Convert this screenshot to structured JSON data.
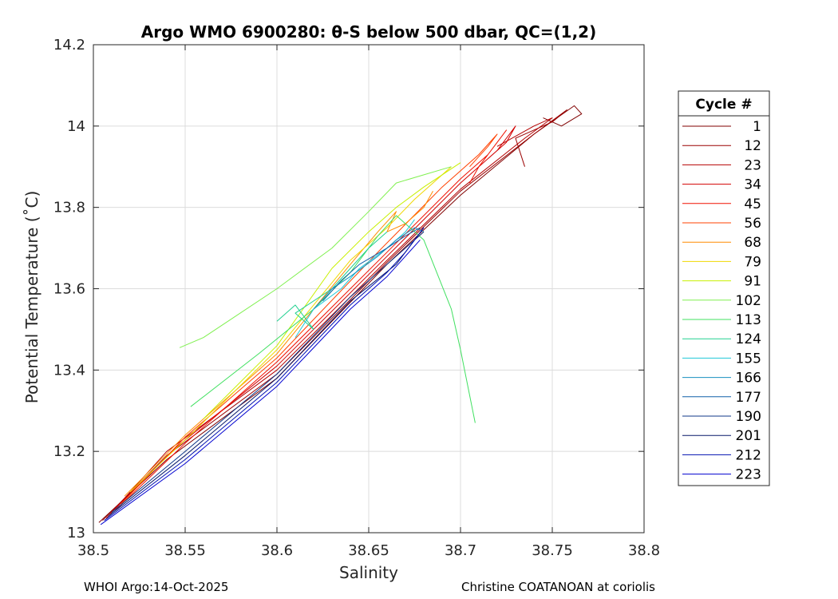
{
  "chart_data": {
    "type": "line",
    "title": "Argo WMO 6900280: θ-S below 500 dbar,  QC=(1,2)",
    "xlabel": "Salinity",
    "ylabel": "Potential Temperature (˚C)",
    "xlim": [
      38.5,
      38.8
    ],
    "ylim": [
      13.0,
      14.2
    ],
    "xticks": [
      "38.5",
      "38.55",
      "38.6",
      "38.65",
      "38.7",
      "38.75",
      "38.8"
    ],
    "yticks": [
      "13",
      "13.2",
      "13.4",
      "13.6",
      "13.8",
      "14",
      "14.2"
    ],
    "grid": true,
    "legend_title": "Cycle #",
    "legend_position": "right",
    "series": [
      {
        "name": "1",
        "color": "#800000",
        "x": [
          38.503,
          38.54,
          38.6,
          38.66,
          38.7,
          38.74,
          38.762,
          38.766,
          38.755,
          38.745
        ],
        "y": [
          13.025,
          13.18,
          13.38,
          13.66,
          13.83,
          13.98,
          14.05,
          14.03,
          14.0,
          14.02
        ]
      },
      {
        "name": "12",
        "color": "#9a0000",
        "x": [
          38.505,
          38.54,
          38.6,
          38.66,
          38.7,
          38.74,
          38.758,
          38.75,
          38.73,
          38.735
        ],
        "y": [
          13.03,
          13.19,
          13.39,
          13.665,
          13.84,
          13.98,
          14.04,
          14.01,
          13.97,
          13.9
        ]
      },
      {
        "name": "23",
        "color": "#b40000",
        "x": [
          38.507,
          38.54,
          38.6,
          38.66,
          38.7,
          38.735,
          38.75,
          38.74,
          38.72
        ],
        "y": [
          13.035,
          13.2,
          13.4,
          13.67,
          13.845,
          13.97,
          14.02,
          14.0,
          13.95
        ]
      },
      {
        "name": "34",
        "color": "#d20000",
        "x": [
          38.51,
          38.545,
          38.6,
          38.66,
          38.7,
          38.72,
          38.73,
          38.725,
          38.715
        ],
        "y": [
          13.05,
          13.21,
          13.41,
          13.68,
          13.86,
          13.94,
          14.0,
          13.96,
          13.92
        ]
      },
      {
        "name": "45",
        "color": "#f01000",
        "x": [
          38.512,
          38.55,
          38.6,
          38.66,
          38.7,
          38.715,
          38.725,
          38.72,
          38.71,
          38.705
        ],
        "y": [
          13.055,
          13.22,
          13.42,
          13.69,
          13.87,
          13.93,
          13.99,
          13.96,
          13.9,
          13.86
        ]
      },
      {
        "name": "56",
        "color": "#ff4000",
        "x": [
          38.515,
          38.55,
          38.6,
          38.655,
          38.69,
          38.71,
          38.72,
          38.715,
          38.705
        ],
        "y": [
          13.07,
          13.235,
          13.43,
          13.69,
          13.85,
          13.93,
          13.98,
          13.95,
          13.9
        ]
      },
      {
        "name": "68",
        "color": "#ff8c00",
        "x": [
          38.517,
          38.55,
          38.6,
          38.64,
          38.655,
          38.665,
          38.66,
          38.67,
          38.68,
          38.685
        ],
        "y": [
          13.09,
          13.24,
          13.44,
          13.66,
          13.74,
          13.79,
          13.74,
          13.76,
          13.8,
          13.84
        ]
      },
      {
        "name": "79",
        "color": "#f0d800",
        "x": [
          38.52,
          38.555,
          38.6,
          38.64,
          38.66,
          38.675,
          38.685,
          38.69,
          38.695
        ],
        "y": [
          13.1,
          13.25,
          13.45,
          13.67,
          13.75,
          13.82,
          13.86,
          13.88,
          13.9
        ]
      },
      {
        "name": "91",
        "color": "#c8f000",
        "x": [
          38.56,
          38.6,
          38.63,
          38.65,
          38.665,
          38.68,
          38.69,
          38.7
        ],
        "y": [
          13.28,
          13.46,
          13.65,
          13.74,
          13.8,
          13.85,
          13.88,
          13.91
        ]
      },
      {
        "name": "102",
        "color": "#80f050",
        "x": [
          38.547,
          38.56,
          38.57,
          38.6,
          38.63,
          38.65,
          38.665,
          38.68,
          38.695
        ],
        "y": [
          13.455,
          13.48,
          13.51,
          13.6,
          13.7,
          13.79,
          13.86,
          13.88,
          13.9
        ]
      },
      {
        "name": "113",
        "color": "#40e060",
        "x": [
          38.553,
          38.59,
          38.62,
          38.64,
          38.655,
          38.665,
          38.68,
          38.695,
          38.7,
          38.708
        ],
        "y": [
          13.31,
          13.44,
          13.55,
          13.64,
          13.73,
          13.78,
          13.72,
          13.55,
          13.45,
          13.27
        ]
      },
      {
        "name": "124",
        "color": "#20d090",
        "x": [
          38.6,
          38.61,
          38.62,
          38.61,
          38.63,
          38.64,
          38.65,
          38.66
        ],
        "y": [
          13.52,
          13.56,
          13.5,
          13.54,
          13.6,
          13.65,
          13.7,
          13.74
        ]
      },
      {
        "name": "155",
        "color": "#20c8d8",
        "x": [
          38.61,
          38.62,
          38.635,
          38.645,
          38.66,
          38.67,
          38.675
        ],
        "y": [
          13.48,
          13.55,
          13.6,
          13.65,
          13.7,
          13.74,
          13.77
        ]
      },
      {
        "name": "166",
        "color": "#1890c0",
        "x": [
          38.62,
          38.63,
          38.64,
          38.655,
          38.665,
          38.675,
          38.68
        ],
        "y": [
          13.55,
          13.6,
          13.63,
          13.68,
          13.72,
          13.75,
          13.74
        ]
      },
      {
        "name": "177",
        "color": "#1060a8",
        "x": [
          38.625,
          38.635,
          38.645,
          38.66,
          38.67,
          38.678
        ],
        "y": [
          13.57,
          13.62,
          13.66,
          13.7,
          13.73,
          13.75
        ]
      },
      {
        "name": "190",
        "color": "#103888",
        "x": [
          38.51,
          38.55,
          38.6,
          38.64,
          38.66,
          38.675,
          38.68
        ],
        "y": [
          13.05,
          13.2,
          13.39,
          13.58,
          13.66,
          13.72,
          13.75
        ]
      },
      {
        "name": "201",
        "color": "#081868",
        "x": [
          38.508,
          38.55,
          38.6,
          38.64,
          38.665,
          38.675,
          38.68
        ],
        "y": [
          13.04,
          13.19,
          13.38,
          13.57,
          13.66,
          13.72,
          13.74
        ]
      },
      {
        "name": "212",
        "color": "#0010b0",
        "x": [
          38.506,
          38.55,
          38.6,
          38.64,
          38.66,
          38.67,
          38.675,
          38.68
        ],
        "y": [
          13.03,
          13.18,
          13.37,
          13.56,
          13.64,
          13.69,
          13.72,
          13.75
        ]
      },
      {
        "name": "223",
        "color": "#0000d0",
        "x": [
          38.504,
          38.55,
          38.6,
          38.64,
          38.66,
          38.67,
          38.678
        ],
        "y": [
          13.02,
          13.17,
          13.36,
          13.55,
          13.63,
          13.68,
          13.72
        ]
      }
    ]
  },
  "footer": {
    "left": "WHOI Argo:14-Oct-2025",
    "right": "Christine COATANOAN at coriolis"
  }
}
